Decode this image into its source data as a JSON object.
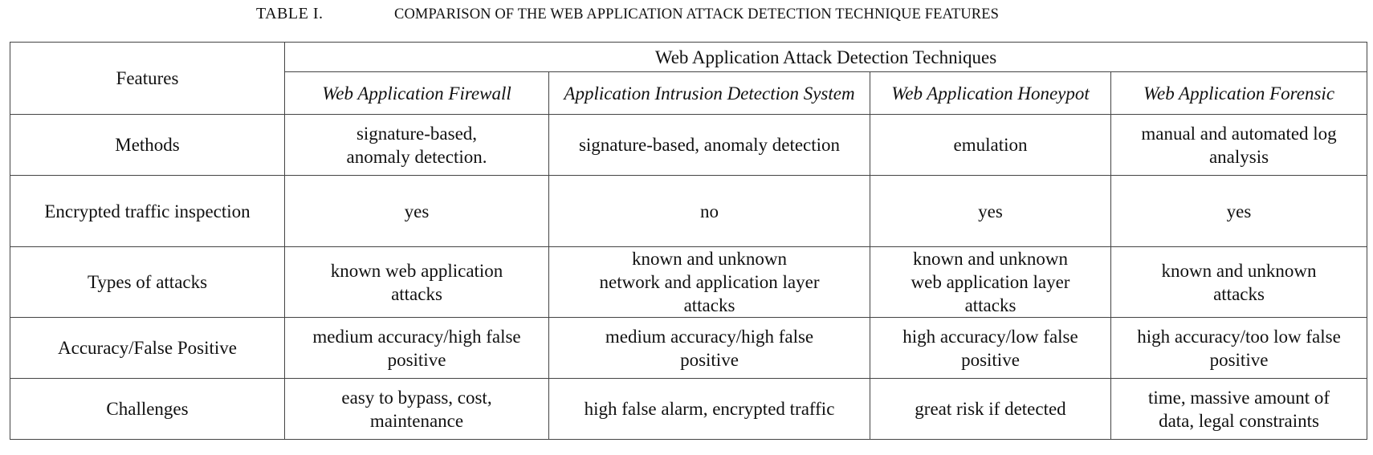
{
  "caption": {
    "label": "TABLE I.",
    "title": "COMPARISON OF THE WEB APPLICATION ATTACK DETECTION TECHNIQUE FEATURES"
  },
  "table": {
    "features_header": "Features",
    "group_header": "Web Application Attack Detection Techniques",
    "techniques": [
      "Web Application Firewall",
      "Application Intrusion Detection System",
      "Web Application Honeypot",
      "Web Application Forensic"
    ],
    "rows": [
      {
        "feature": "Methods",
        "cells": [
          [
            "signature-based,",
            "anomaly detection."
          ],
          [
            "signature-based, anomaly detection"
          ],
          [
            "emulation"
          ],
          [
            "manual and automated log",
            "analysis"
          ]
        ]
      },
      {
        "feature": "Encrypted traffic inspection",
        "cells": [
          [
            "yes"
          ],
          [
            "no"
          ],
          [
            "yes"
          ],
          [
            "yes"
          ]
        ]
      },
      {
        "feature": "Types of attacks",
        "cells": [
          [
            "known web application",
            "attacks"
          ],
          [
            "known and unknown",
            "network and application layer",
            "attacks"
          ],
          [
            "known and unknown",
            "web application layer",
            "attacks"
          ],
          [
            "known and unknown",
            "attacks"
          ]
        ]
      },
      {
        "feature": "Accuracy/False Positive",
        "cells": [
          [
            "medium accuracy/high false",
            "positive"
          ],
          [
            "medium accuracy/high false",
            "positive"
          ],
          [
            "high accuracy/low false",
            "positive"
          ],
          [
            "high accuracy/too low false",
            "positive"
          ]
        ]
      },
      {
        "feature": "Challenges",
        "cells": [
          [
            "easy to bypass, cost,",
            "maintenance"
          ],
          [
            "high false alarm, encrypted traffic"
          ],
          [
            "great risk if detected"
          ],
          [
            "time, massive amount of",
            "data,  legal constraints"
          ]
        ]
      }
    ]
  }
}
